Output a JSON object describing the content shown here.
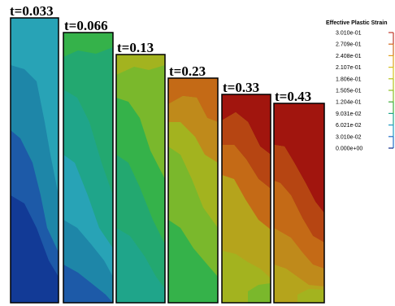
{
  "figure": {
    "panels": [
      {
        "time_label": "t=0.033"
      },
      {
        "time_label": "t=0.066"
      },
      {
        "time_label": "t=0.13"
      },
      {
        "time_label": "t=0.23"
      },
      {
        "time_label": "t=0.33"
      },
      {
        "time_label": "t=0.43"
      }
    ],
    "legend": {
      "title": "Effective Plastic Strain",
      "values": [
        "3.010e-01",
        "2.709e-01",
        "2.408e-01",
        "2.107e-01",
        "1.806e-01",
        "1.505e-01",
        "1.204e-01",
        "9.031e-02",
        "6.021e-02",
        "3.010e-02",
        "0.000e+00"
      ],
      "tick_colors": [
        "#c0392b",
        "#d2691e",
        "#e0a21c",
        "#d4c020",
        "#b5c21b",
        "#8bbf23",
        "#3fae3a",
        "#1fa58a",
        "#1e9bc2",
        "#1f6fc9",
        "#0f2c8c"
      ]
    },
    "colors": {
      "deep_blue": "#123a96",
      "blue": "#1d5aa8",
      "teal_blue": "#1e86a8",
      "cyan": "#28a3b6",
      "teal": "#1fa58a",
      "sea_green": "#23a870",
      "green": "#35b24a",
      "lime": "#7ab82c",
      "yellow_green": "#a3b31f",
      "olive": "#b5a41c",
      "ochre": "#bf8a1b",
      "orange": "#c46a16",
      "red_orange": "#b64512",
      "dark_red": "#a1150e"
    }
  }
}
